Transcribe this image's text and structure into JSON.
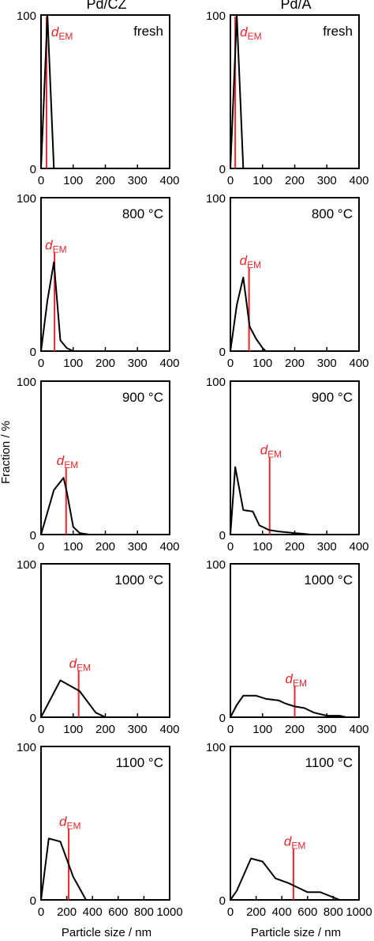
{
  "column_titles": [
    "Pd/CZ",
    "Pd/A"
  ],
  "y_axis_label": "Fraction / %",
  "x_axis_label": "Particle size / nm",
  "dem_label_main": "d",
  "dem_label_sub": "EM",
  "colors": {
    "line": "#000000",
    "dem": "#e8262a",
    "axis": "#000000"
  },
  "chart_data": [
    {
      "type": "line",
      "column": "Pd/CZ",
      "row": 1,
      "condition": "fresh",
      "xlim": [
        0,
        400
      ],
      "ylim": [
        0,
        100
      ],
      "xticks": [
        0,
        100,
        200,
        300,
        400
      ],
      "yticks": [
        0,
        100
      ],
      "series": [
        {
          "x": [
            0,
            20,
            40
          ],
          "y": [
            0,
            100,
            0
          ]
        }
      ],
      "dEM": 17
    },
    {
      "type": "line",
      "column": "Pd/A",
      "row": 1,
      "condition": "fresh",
      "xlim": [
        0,
        400
      ],
      "ylim": [
        0,
        100
      ],
      "xticks": [
        0,
        100,
        200,
        300,
        400
      ],
      "yticks": [
        0,
        100
      ],
      "series": [
        {
          "x": [
            0,
            20,
            40
          ],
          "y": [
            0,
            100,
            0
          ]
        }
      ],
      "dEM": 15
    },
    {
      "type": "line",
      "column": "Pd/CZ",
      "row": 2,
      "condition": "800 °C",
      "xlim": [
        0,
        400
      ],
      "ylim": [
        0,
        100
      ],
      "xticks": [
        0,
        100,
        200,
        300,
        400
      ],
      "yticks": [
        0,
        100
      ],
      "series": [
        {
          "x": [
            0,
            20,
            40,
            60,
            80,
            100
          ],
          "y": [
            0,
            33,
            58,
            7,
            2,
            0
          ]
        }
      ],
      "dEM": 42
    },
    {
      "type": "line",
      "column": "Pd/A",
      "row": 2,
      "condition": "800 °C",
      "xlim": [
        0,
        400
      ],
      "ylim": [
        0,
        100
      ],
      "xticks": [
        0,
        100,
        200,
        300,
        400
      ],
      "yticks": [
        0,
        100
      ],
      "series": [
        {
          "x": [
            0,
            20,
            40,
            60,
            80,
            100,
            110
          ],
          "y": [
            0,
            30,
            48,
            16,
            8,
            2,
            0
          ]
        }
      ],
      "dEM": 58
    },
    {
      "type": "line",
      "column": "Pd/CZ",
      "row": 3,
      "condition": "900 °C",
      "xlim": [
        0,
        400
      ],
      "ylim": [
        0,
        100
      ],
      "xticks": [
        0,
        100,
        200,
        300,
        400
      ],
      "yticks": [
        0,
        100
      ],
      "series": [
        {
          "x": [
            0,
            40,
            70,
            80,
            100,
            120,
            150,
            170
          ],
          "y": [
            0,
            29,
            37,
            28,
            5,
            1,
            0,
            0
          ]
        }
      ],
      "dEM": 78
    },
    {
      "type": "line",
      "column": "Pd/A",
      "row": 3,
      "condition": "900 °C",
      "xlim": [
        0,
        400
      ],
      "ylim": [
        0,
        100
      ],
      "xticks": [
        0,
        100,
        200,
        300,
        400
      ],
      "yticks": [
        0,
        100
      ],
      "series": [
        {
          "x": [
            0,
            15,
            40,
            70,
            90,
            120,
            150,
            200,
            250,
            300,
            340
          ],
          "y": [
            0,
            44,
            16,
            15,
            6,
            3,
            2,
            1,
            0,
            0,
            0
          ]
        }
      ],
      "dEM": 122
    },
    {
      "type": "line",
      "column": "Pd/CZ",
      "row": 4,
      "condition": "1000 °C",
      "xlim": [
        0,
        400
      ],
      "ylim": [
        0,
        100
      ],
      "xticks": [
        0,
        100,
        200,
        300,
        400
      ],
      "yticks": [
        0,
        100
      ],
      "series": [
        {
          "x": [
            0,
            60,
            120,
            170,
            200
          ],
          "y": [
            0,
            24,
            17,
            3,
            0
          ]
        }
      ],
      "dEM": 117
    },
    {
      "type": "line",
      "column": "Pd/A",
      "row": 4,
      "condition": "1000 °C",
      "xlim": [
        0,
        400
      ],
      "ylim": [
        0,
        100
      ],
      "xticks": [
        0,
        100,
        200,
        300,
        400
      ],
      "yticks": [
        0,
        100
      ],
      "series": [
        {
          "x": [
            0,
            20,
            40,
            80,
            110,
            150,
            170,
            200,
            230,
            260,
            300,
            340,
            360
          ],
          "y": [
            0,
            8,
            14,
            14,
            12,
            11,
            9,
            7,
            6,
            3,
            1,
            1,
            0
          ]
        }
      ],
      "dEM": 200
    },
    {
      "type": "line",
      "column": "Pd/CZ",
      "row": 5,
      "condition": "1100 °C",
      "xlim": [
        0,
        1000
      ],
      "ylim": [
        0,
        100
      ],
      "xticks": [
        0,
        200,
        400,
        600,
        800,
        1000
      ],
      "yticks": [
        0,
        100
      ],
      "series": [
        {
          "x": [
            0,
            60,
            150,
            250,
            350
          ],
          "y": [
            0,
            40,
            38,
            15,
            0
          ]
        }
      ],
      "dEM": 215
    },
    {
      "type": "line",
      "column": "Pd/A",
      "row": 5,
      "condition": "1100 °C",
      "xlim": [
        0,
        1000
      ],
      "ylim": [
        0,
        100
      ],
      "xticks": [
        0,
        200,
        400,
        600,
        800,
        1000
      ],
      "yticks": [
        0,
        100
      ],
      "series": [
        {
          "x": [
            0,
            50,
            160,
            250,
            350,
            450,
            500,
            600,
            700,
            850
          ],
          "y": [
            0,
            6,
            27,
            25,
            14,
            11,
            9,
            5,
            5,
            0
          ]
        }
      ],
      "dEM": 490
    }
  ]
}
